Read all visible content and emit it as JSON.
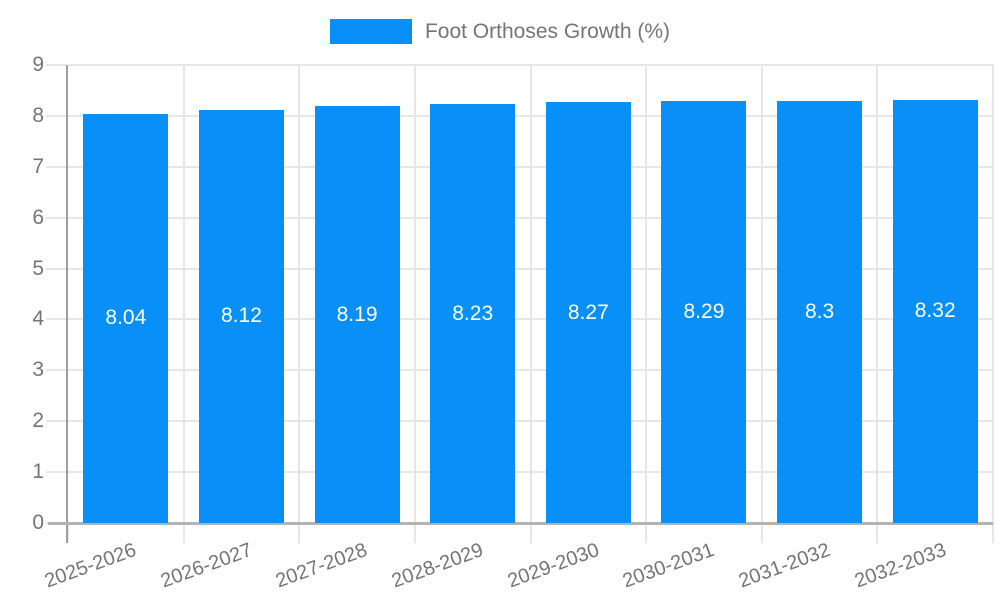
{
  "page": {
    "background": "#ffffff"
  },
  "legend": {
    "label": "Foot Orthoses Growth (%)"
  },
  "chart_data": {
    "type": "bar",
    "title": "Foot Orthoses Growth (%)",
    "categories": [
      "2025-2026",
      "2026-2027",
      "2027-2028",
      "2028-2029",
      "2029-2030",
      "2030-2031",
      "2031-2032",
      "2032-2033"
    ],
    "series": [
      {
        "name": "Foot Orthoses Growth (%)",
        "values": [
          8.04,
          8.12,
          8.19,
          8.23,
          8.27,
          8.29,
          8.3,
          8.32
        ]
      }
    ],
    "value_labels": [
      "8.04",
      "8.12",
      "8.19",
      "8.23",
      "8.27",
      "8.29",
      "8.3",
      "8.32"
    ],
    "xlabel": "",
    "ylabel": "",
    "ylim": [
      0,
      9
    ],
    "ytick_step": 1,
    "yticks": [
      "0",
      "1",
      "2",
      "3",
      "4",
      "5",
      "6",
      "7",
      "8",
      "9"
    ],
    "grid": true,
    "legend_position": "top",
    "xtick_rotation_deg": -20,
    "colors": {
      "bar": "#0890f8",
      "grid": "#e6e6e6",
      "axis": "#9e9e9e",
      "tick_text": "#757575",
      "value_label": "#ffffff"
    }
  }
}
